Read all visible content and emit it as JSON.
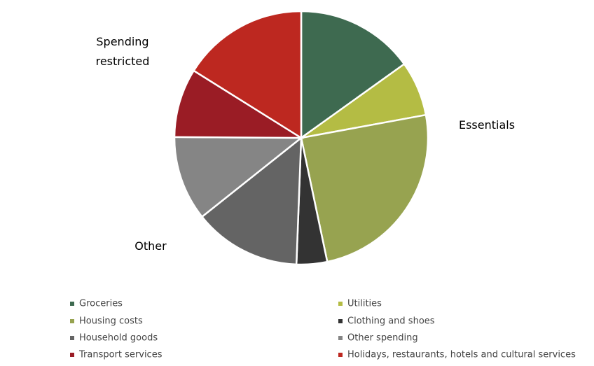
{
  "chart_data": {
    "type": "pie",
    "categories": [
      "Groceries",
      "Utilities",
      "Housing costs",
      "Clothing and shoes",
      "Household goods",
      "Other spending",
      "Transport services",
      "Holidays, restaurants, hotels and cultural services"
    ],
    "values": [
      15.1,
      7.0,
      24.6,
      3.9,
      13.7,
      10.8,
      8.8,
      16.1
    ],
    "colors": [
      "#3e6a50",
      "#b4bc44",
      "#97a350",
      "#333333",
      "#646464",
      "#858585",
      "#9a1c25",
      "#bd2820"
    ],
    "annotations": [
      "Spending restricted",
      "Essentials",
      "Other"
    ]
  }
}
